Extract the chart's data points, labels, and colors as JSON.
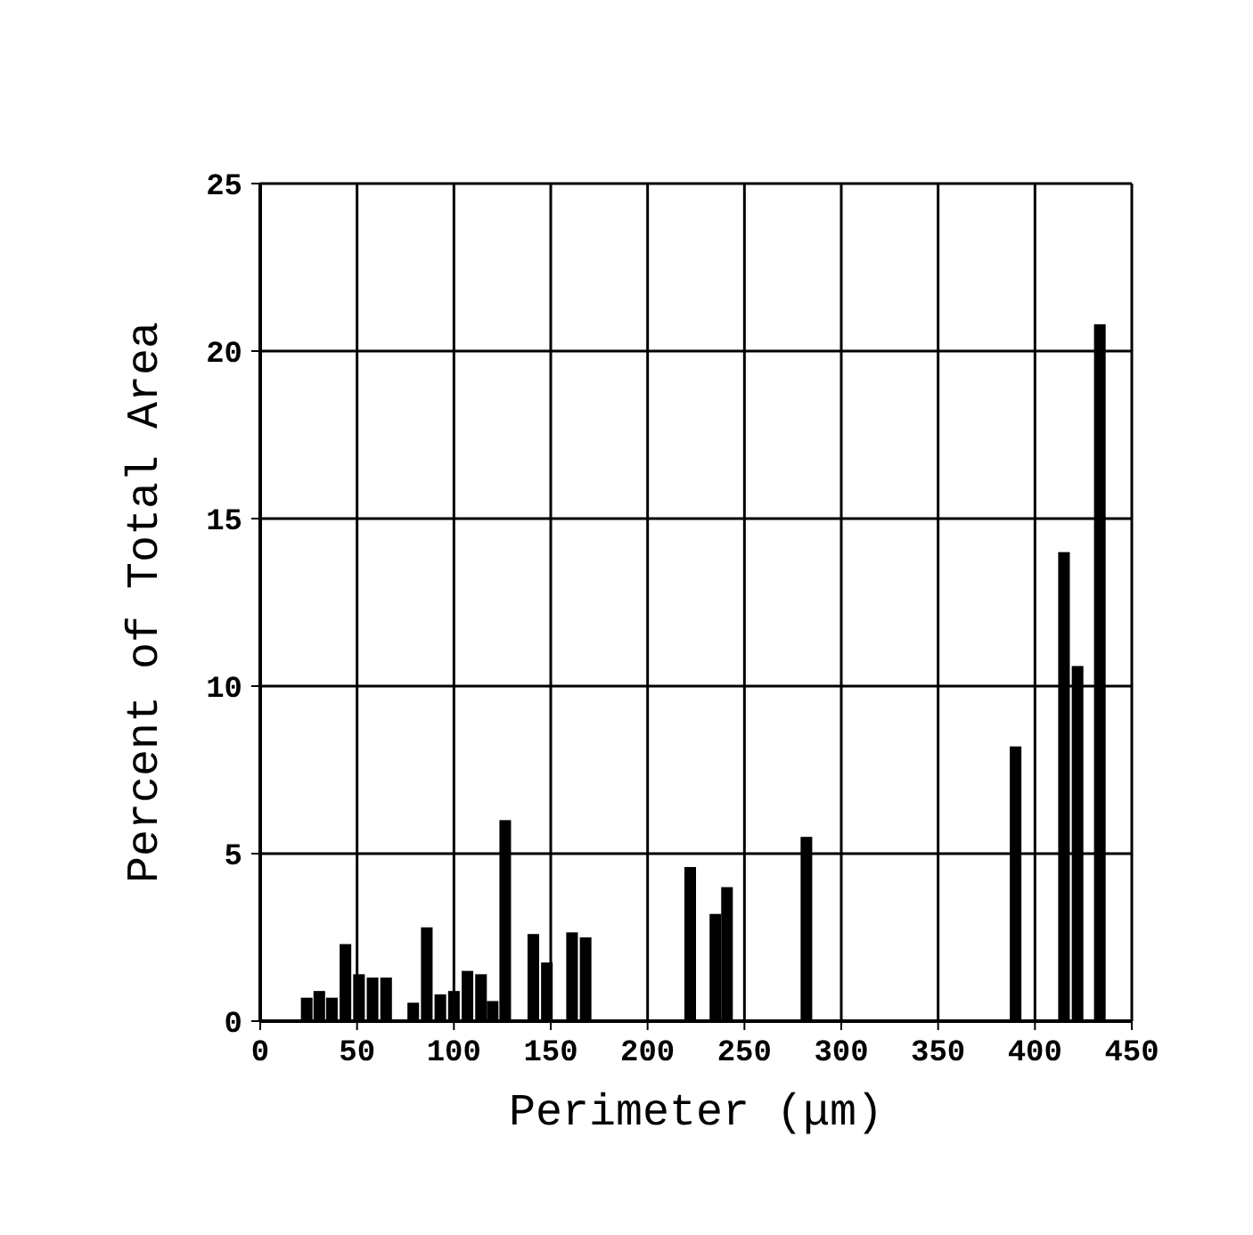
{
  "chart_data": {
    "type": "bar",
    "xlabel": "Perimeter (μm)",
    "ylabel": "Percent of Total Area",
    "x": [
      24,
      30.5,
      37,
      44,
      51,
      58,
      65,
      79,
      86,
      93,
      100,
      107,
      114,
      120,
      126.5,
      141,
      148,
      161,
      168,
      222,
      235,
      241,
      282,
      390,
      415,
      422,
      433.5
    ],
    "values": [
      0.7,
      0.9,
      0.7,
      2.3,
      1.4,
      1.3,
      1.3,
      0.55,
      2.8,
      0.8,
      0.9,
      1.5,
      1.4,
      0.6,
      6.0,
      2.6,
      1.75,
      2.65,
      2.5,
      4.6,
      3.2,
      4.0,
      5.5,
      8.2,
      14.0,
      10.6,
      20.8
    ],
    "color": "#000000",
    "xlim": [
      0,
      450
    ],
    "xticks": [
      0,
      50,
      100,
      150,
      200,
      250,
      300,
      350,
      400,
      450
    ],
    "ylim": [
      0,
      25
    ],
    "yticks": [
      0,
      5,
      10,
      15,
      20,
      25
    ],
    "grid": true
  }
}
